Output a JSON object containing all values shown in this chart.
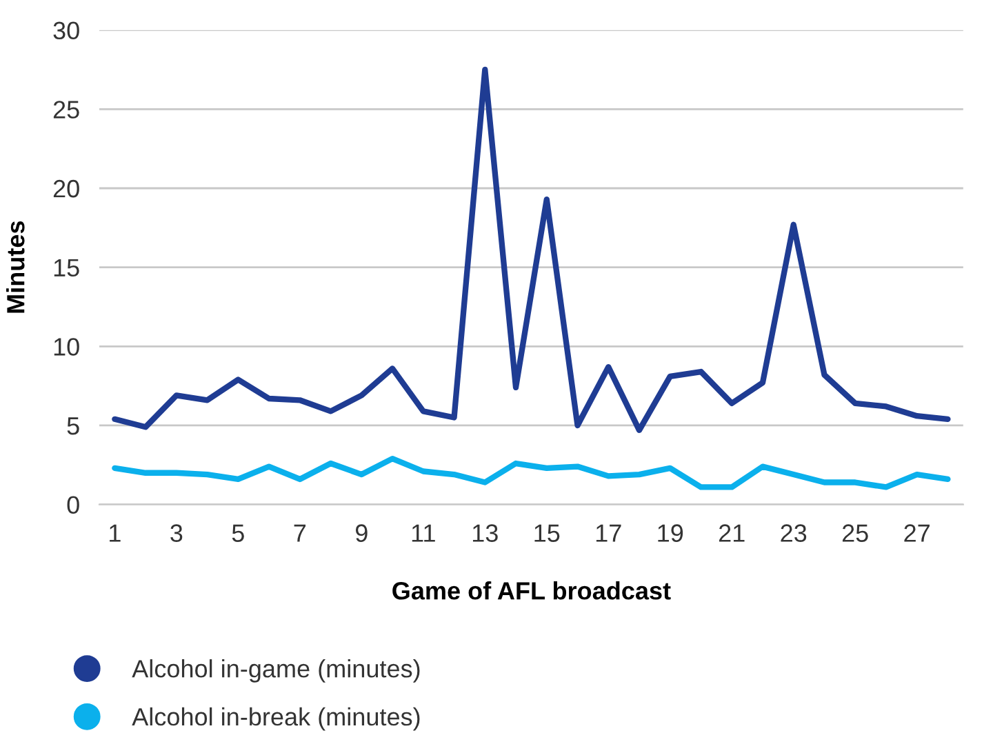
{
  "chart_data": {
    "type": "line",
    "xlabel": "Game of AFL broadcast",
    "ylabel": "Minutes",
    "categories": [
      "1",
      null,
      "3",
      null,
      "5",
      null,
      "7",
      null,
      "9",
      null,
      "11",
      null,
      "13",
      null,
      "15",
      null,
      "17",
      null,
      "19",
      null,
      "21",
      null,
      "23",
      null,
      "25",
      null,
      "27",
      null
    ],
    "series": [
      {
        "name": "Alcohol in-game (minutes)",
        "color": "#1f3c93",
        "values": [
          5.4,
          4.9,
          6.9,
          6.6,
          7.9,
          6.7,
          6.6,
          5.9,
          6.9,
          8.6,
          5.9,
          5.5,
          27.5,
          7.4,
          19.3,
          5.0,
          8.7,
          4.7,
          8.1,
          8.4,
          6.4,
          7.7,
          17.7,
          8.2,
          6.4,
          6.2,
          5.6,
          5.4
        ]
      },
      {
        "name": "Alcohol in-break (minutes)",
        "color": "#0bb0ec",
        "values": [
          2.3,
          2.0,
          2.0,
          1.9,
          1.6,
          2.4,
          1.6,
          2.6,
          1.9,
          2.9,
          2.1,
          1.9,
          1.4,
          2.6,
          2.3,
          2.4,
          1.8,
          1.9,
          2.3,
          1.1,
          1.1,
          2.4,
          1.9,
          1.4,
          1.4,
          1.1,
          1.9,
          1.6
        ]
      }
    ],
    "ylim": [
      0,
      30
    ],
    "yticks": [
      0,
      5,
      10,
      15,
      20,
      25,
      30
    ],
    "grid": "y",
    "legend": "bottom left",
    "marker": "none",
    "line_style": "solid"
  }
}
